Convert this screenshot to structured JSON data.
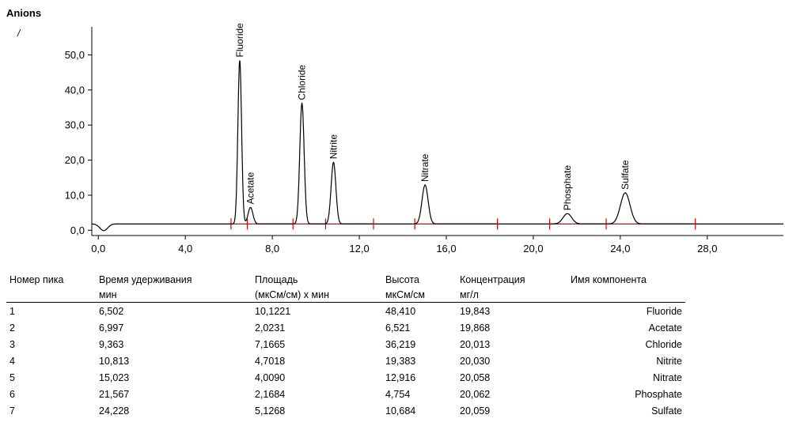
{
  "chart_data": {
    "type": "line",
    "title": "Anions",
    "ylabel": "/",
    "xlabel": "",
    "xlim": [
      -0.3,
      31.5
    ],
    "ylim": [
      -1.5,
      58
    ],
    "x_ticks": [
      "0,0",
      "4,0",
      "8,0",
      "12,0",
      "16,0",
      "20,0",
      "24,0",
      "28,0"
    ],
    "x_tick_values": [
      0,
      4,
      8,
      12,
      16,
      20,
      24,
      28
    ],
    "y_ticks": [
      "0,0",
      "10,0",
      "20,0",
      "30,0",
      "40,0",
      "50,0"
    ],
    "y_tick_values": [
      0,
      10,
      20,
      30,
      40,
      50
    ],
    "baseline": 1.8,
    "peaks": [
      {
        "name": "Fluoride",
        "time": 6.502,
        "height": 48.41,
        "sigma": 0.085
      },
      {
        "name": "Acetate",
        "time": 6.997,
        "height": 6.521,
        "sigma": 0.11
      },
      {
        "name": "Chloride",
        "time": 9.363,
        "height": 36.219,
        "sigma": 0.1
      },
      {
        "name": "Nitrite",
        "time": 10.813,
        "height": 19.383,
        "sigma": 0.11
      },
      {
        "name": "Nitrate",
        "time": 15.023,
        "height": 12.916,
        "sigma": 0.14
      },
      {
        "name": "Phosphate",
        "time": 21.567,
        "height": 4.754,
        "sigma": 0.2
      },
      {
        "name": "Sulfate",
        "time": 24.228,
        "height": 10.684,
        "sigma": 0.22
      }
    ],
    "integration_markers": [
      6.1,
      6.85,
      8.95,
      10.45,
      12.65,
      14.55,
      18.35,
      20.75,
      23.35,
      27.45
    ],
    "colors": {
      "trace": "#000000",
      "integration": "#e00000",
      "axis": "#000000"
    }
  },
  "table": {
    "headers_row1": [
      "Номер пика",
      "Время удерживания",
      "Площадь",
      "Высота",
      "Концентрация",
      "Имя компонента"
    ],
    "headers_row2": [
      "",
      "мин",
      "(мкСм/см) х мин",
      "мкСм/см",
      "мг/л",
      ""
    ],
    "rows": [
      [
        "1",
        "6,502",
        "10,1221",
        "48,410",
        "19,843",
        "Fluoride"
      ],
      [
        "2",
        "6,997",
        "2,0231",
        "6,521",
        "19,868",
        "Acetate"
      ],
      [
        "3",
        "9,363",
        "7,1665",
        "36,219",
        "20,013",
        "Chloride"
      ],
      [
        "4",
        "10,813",
        "4,7018",
        "19,383",
        "20,030",
        "Nitrite"
      ],
      [
        "5",
        "15,023",
        "4,0090",
        "12,916",
        "20,058",
        "Nitrate"
      ],
      [
        "6",
        "21,567",
        "2,1684",
        "4,754",
        "20,062",
        "Phosphate"
      ],
      [
        "7",
        "24,228",
        "5,1268",
        "10,684",
        "20,059",
        "Sulfate"
      ]
    ]
  }
}
